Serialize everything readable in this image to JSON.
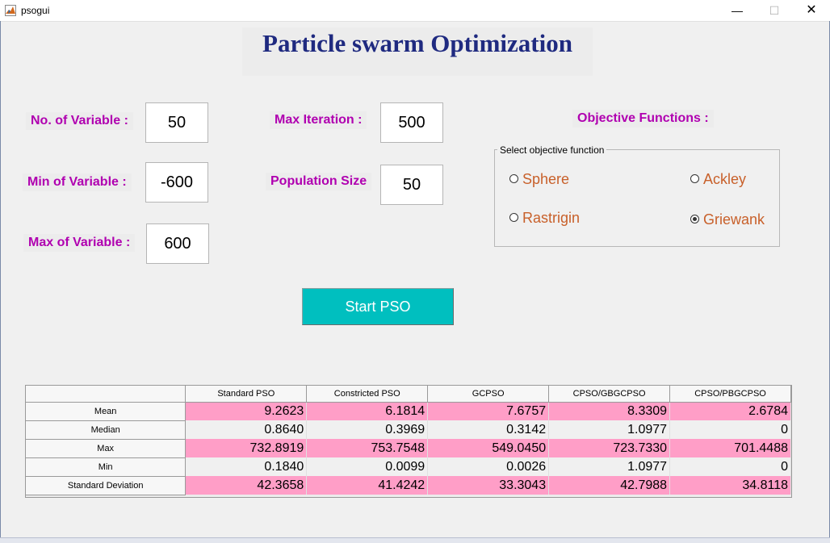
{
  "window": {
    "title": "psogui",
    "icon": "matlab-icon",
    "controls": [
      "—",
      "☐",
      "✕"
    ]
  },
  "header": {
    "title": "Particle swarm Optimization"
  },
  "fields": {
    "num_vars": {
      "label": "No. of Variable :",
      "value": "50"
    },
    "min_var": {
      "label": "Min of Variable :",
      "value": "-600"
    },
    "max_var": {
      "label": "Max of Variable :",
      "value": "600"
    },
    "max_iter": {
      "label": "Max Iteration :",
      "value": "500"
    },
    "pop_size": {
      "label": "Population Size",
      "value": "50"
    }
  },
  "objective": {
    "heading": "Objective Functions :",
    "group_title": "Select objective function",
    "options": [
      {
        "label": "Sphere",
        "selected": false
      },
      {
        "label": "Ackley",
        "selected": false
      },
      {
        "label": "Rastrigin",
        "selected": false
      },
      {
        "label": "Griewank",
        "selected": true
      }
    ]
  },
  "start_button": {
    "label": "Start PSO"
  },
  "results": {
    "columns": [
      "Standard PSO",
      "Constricted PSO",
      "GCPSO",
      "CPSO/GBGCPSO",
      "CPSO/PBGCPSO"
    ],
    "rows": [
      {
        "label": "Mean",
        "values": [
          "9.2623",
          "6.1814",
          "7.6757",
          "8.3309",
          "2.6784"
        ]
      },
      {
        "label": "Median",
        "values": [
          "0.8640",
          "0.3969",
          "0.3142",
          "1.0977",
          "0"
        ]
      },
      {
        "label": "Max",
        "values": [
          "732.8919",
          "753.7548",
          "549.0450",
          "723.7330",
          "701.4488"
        ]
      },
      {
        "label": "Min",
        "values": [
          "0.1840",
          "0.0099",
          "0.0026",
          "1.0977",
          "0"
        ]
      },
      {
        "label": "Standard Deviation",
        "values": [
          "42.3658",
          "41.4242",
          "33.3043",
          "42.7988",
          "34.8118"
        ]
      }
    ]
  },
  "colors": {
    "label_magenta": "#b000b0",
    "title_navy": "#1f2a80",
    "radio_orange": "#c8602a",
    "button_teal": "#00bfbf",
    "row_pink": "#ff9ec7"
  }
}
